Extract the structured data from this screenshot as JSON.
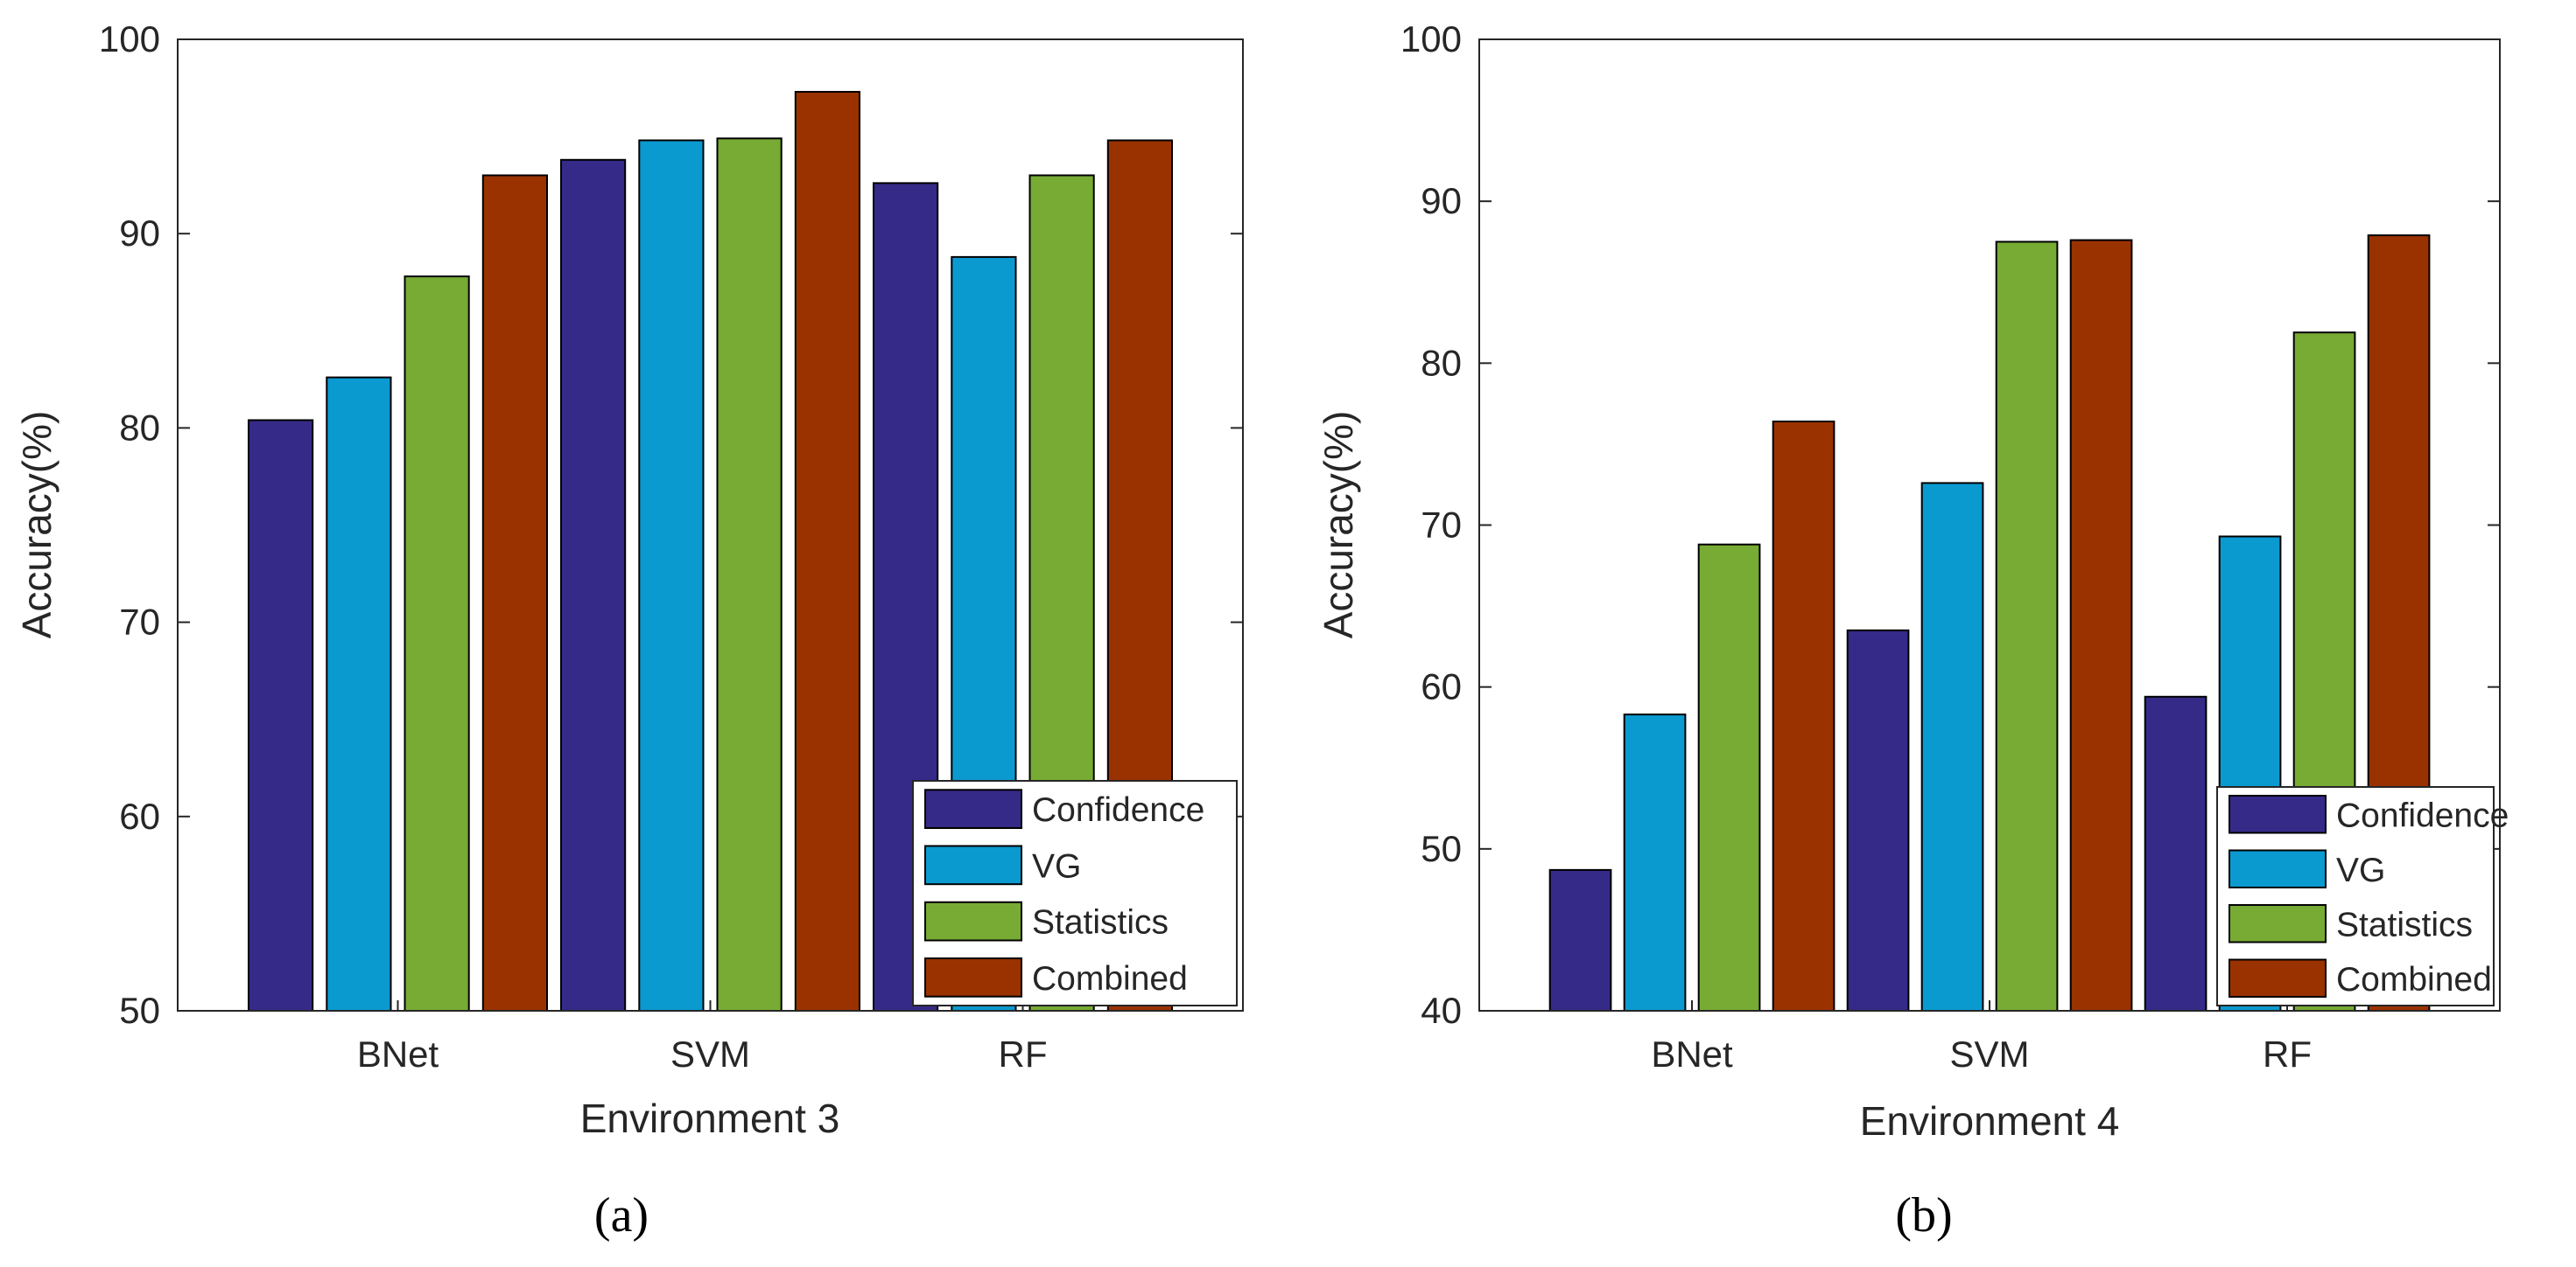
{
  "chart_data": [
    {
      "type": "bar",
      "panel_label": "(a)",
      "xlabel": "Environment 3",
      "ylabel": "Accuracy(%)",
      "ylim": [
        50,
        100
      ],
      "yticks": [
        50,
        60,
        70,
        80,
        90,
        100
      ],
      "grid": false,
      "legend_position": "bottom-right",
      "categories": [
        "BNet",
        "SVM",
        "RF"
      ],
      "series": [
        {
          "name": "Confidence",
          "color": "#352a87",
          "values": [
            80.4,
            93.8,
            92.6
          ]
        },
        {
          "name": "VG",
          "color": "#0a9ad0",
          "values": [
            82.6,
            94.8,
            88.8
          ]
        },
        {
          "name": "Statistics",
          "color": "#77ab34",
          "values": [
            87.8,
            94.9,
            93.0
          ]
        },
        {
          "name": "Combined",
          "color": "#9a3200",
          "values": [
            93.0,
            97.3,
            94.8
          ]
        }
      ]
    },
    {
      "type": "bar",
      "panel_label": "(b)",
      "xlabel": "Environment 4",
      "ylabel": "Accuracy(%)",
      "ylim": [
        40,
        100
      ],
      "yticks": [
        40,
        50,
        60,
        70,
        80,
        90,
        100
      ],
      "grid": false,
      "legend_position": "bottom-right",
      "categories": [
        "BNet",
        "SVM",
        "RF"
      ],
      "series": [
        {
          "name": "Confidence",
          "color": "#352a87",
          "values": [
            48.7,
            63.5,
            59.4
          ]
        },
        {
          "name": "VG",
          "color": "#0a9ad0",
          "values": [
            58.3,
            72.6,
            69.3
          ]
        },
        {
          "name": "Statistics",
          "color": "#77ab34",
          "values": [
            68.8,
            87.5,
            81.9
          ]
        },
        {
          "name": "Combined",
          "color": "#9a3200",
          "values": [
            76.4,
            87.6,
            87.9
          ]
        }
      ]
    }
  ]
}
